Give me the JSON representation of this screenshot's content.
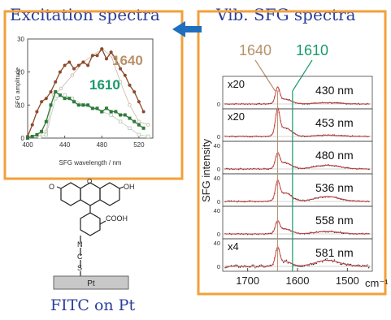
{
  "titles": {
    "excitation": "Excitation spectra",
    "vib": "Vib. SFG spectra",
    "fitc": "FITC on Pt"
  },
  "colors": {
    "border": "#f2a03a",
    "title": "#2a3f9c",
    "arrow": "#1f6fc0",
    "series1640": "#8b4a2a",
    "series1610": "#2f7a3a",
    "marker1640": "#b8916a",
    "marker1610": "#1a9a6a",
    "fit": "#d04040"
  },
  "chart_data": [
    {
      "type": "line",
      "xlabel": "SFG wavelength / nm",
      "ylabel": "SFG amplitude",
      "xlim": [
        400,
        535
      ],
      "ylim": [
        0,
        30
      ],
      "xticks": [
        400,
        440,
        480,
        520
      ],
      "yticks": [
        0,
        10,
        20,
        30
      ],
      "series": [
        {
          "name": "1640",
          "x": [
            400,
            405,
            410,
            415,
            420,
            425,
            430,
            435,
            440,
            445,
            450,
            455,
            460,
            465,
            470,
            475,
            480,
            485,
            490,
            495,
            500,
            505,
            510,
            515,
            520,
            525
          ],
          "values": [
            0.5,
            4,
            8,
            11,
            12,
            14,
            17,
            20,
            22,
            23,
            21,
            22,
            23,
            22,
            25,
            25,
            27,
            24,
            26,
            24,
            21,
            19,
            16,
            14,
            11,
            8
          ]
        },
        {
          "name": "1610",
          "x": [
            400,
            405,
            410,
            415,
            420,
            425,
            430,
            435,
            440,
            445,
            450,
            455,
            460,
            465,
            470,
            475,
            480,
            485,
            490,
            495,
            500,
            505,
            510,
            515,
            520,
            525
          ],
          "values": [
            0,
            0.5,
            1,
            2,
            5,
            10,
            14,
            13,
            12,
            12,
            11,
            10,
            10,
            10,
            9,
            9,
            8,
            9,
            8,
            8,
            7,
            7,
            6,
            5,
            4,
            3
          ]
        },
        {
          "name": "",
          "x": [
            400,
            413,
            420,
            428,
            436,
            448,
            460,
            480,
            490,
            500,
            510,
            520,
            530
          ],
          "values": [
            0.5,
            1,
            2,
            13,
            15,
            19,
            23,
            27,
            25,
            17,
            10,
            5,
            4
          ]
        },
        {
          "name": "",
          "x": [
            400,
            413,
            420,
            430,
            440,
            448,
            460,
            480,
            490,
            500,
            510,
            520,
            530
          ],
          "values": [
            0,
            0.3,
            1,
            12,
            13,
            12,
            10,
            8,
            7,
            5,
            3,
            1,
            0.5
          ]
        }
      ]
    },
    {
      "type": "line",
      "xlabel": "cm⁻¹",
      "ylabel": "SFG intensity",
      "xlim": [
        1750,
        1450
      ],
      "xticks": [
        1700,
        1600,
        1500
      ],
      "markers": [
        "1640",
        "1610"
      ],
      "panels": [
        {
          "label": "430 nm",
          "scale": "x20",
          "ytick": "0",
          "peak1640": 0.6,
          "peak1610": 0.2,
          "broad": 0.05,
          "noise": 0.04
        },
        {
          "label": "453 nm",
          "scale": "x20",
          "ytick": "0",
          "peak1640": 1.0,
          "peak1610": 0.35,
          "broad": 0.05,
          "noise": 0.04
        },
        {
          "label": "480 nm",
          "scale": "",
          "ytick": "40",
          "peak1640": 0.55,
          "peak1610": 0.25,
          "broad": 0.15,
          "noise": 0.05
        },
        {
          "label": "536 nm",
          "scale": "",
          "ytick": "40",
          "peak1640": 0.7,
          "peak1610": 0.35,
          "broad": 0.2,
          "noise": 0.05
        },
        {
          "label": "558 nm",
          "scale": "",
          "ytick": "40",
          "peak1640": 0.45,
          "peak1610": 0.2,
          "broad": 0.1,
          "noise": 0.05
        },
        {
          "label": "581 nm",
          "scale": "x4",
          "ytick": "40",
          "peak1640": 0.7,
          "peak1610": 0.2,
          "broad": 0.25,
          "noise": 0.12
        }
      ]
    }
  ],
  "molecule": {
    "labels": {
      "o_left": "O",
      "oh": "OH",
      "cooh": "COOH",
      "n": "N",
      "c": "C",
      "s": "S",
      "substrate": "Pt"
    }
  }
}
